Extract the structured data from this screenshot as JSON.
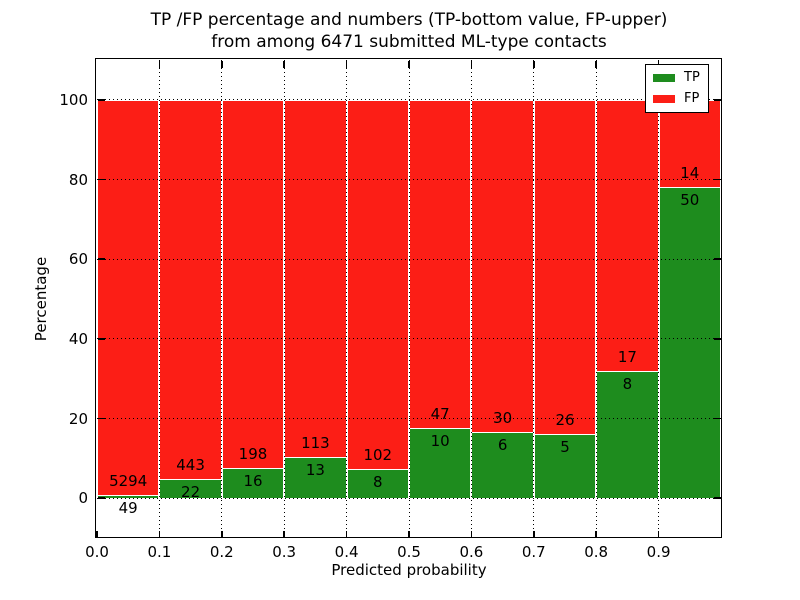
{
  "title": {
    "line1": "TP /FP percentage and numbers (TP-bottom value, FP-upper)",
    "line2": "from among 6471 submitted ML-type contacts"
  },
  "chart_data": {
    "type": "bar",
    "stacked": true,
    "units": "percent of bin total",
    "title": "TP /FP percentage and numbers (TP-bottom value, FP-upper) from among 6471 submitted ML-type contacts",
    "xlabel": "Predicted probability",
    "ylabel": "Percentage",
    "total_submitted": 6471,
    "xlim": [
      0.0,
      1.0
    ],
    "ylim": [
      -10,
      110
    ],
    "x_tick_labels": [
      "0.0",
      "0.1",
      "0.2",
      "0.3",
      "0.4",
      "0.5",
      "0.6",
      "0.7",
      "0.8",
      "0.9"
    ],
    "y_ticks": [
      0,
      20,
      40,
      60,
      80,
      100
    ],
    "y_tick_labels": [
      "0",
      "20",
      "40",
      "60",
      "80",
      "100"
    ],
    "bin_starts": [
      0.0,
      0.1,
      0.2,
      0.3,
      0.4,
      0.5,
      0.6,
      0.7,
      0.8,
      0.9
    ],
    "bin_width": 0.1,
    "series": [
      {
        "name": "TP",
        "color": "#1e8c1e",
        "counts": [
          49,
          22,
          16,
          13,
          8,
          10,
          6,
          5,
          8,
          50
        ]
      },
      {
        "name": "FP",
        "color": "#fc1e16",
        "counts": [
          5294,
          443,
          198,
          113,
          102,
          47,
          30,
          26,
          17,
          14
        ]
      }
    ],
    "tp_percent": [
      0.9,
      4.7,
      7.5,
      10.3,
      7.3,
      17.5,
      16.7,
      16.1,
      32.0,
      78.1
    ],
    "bar_edge_color": "#ffffff",
    "grid": {
      "enabled": true,
      "style": "dotted",
      "color": "#000000"
    },
    "legend": {
      "position": "upper right",
      "entries": [
        "TP",
        "FP"
      ]
    }
  }
}
